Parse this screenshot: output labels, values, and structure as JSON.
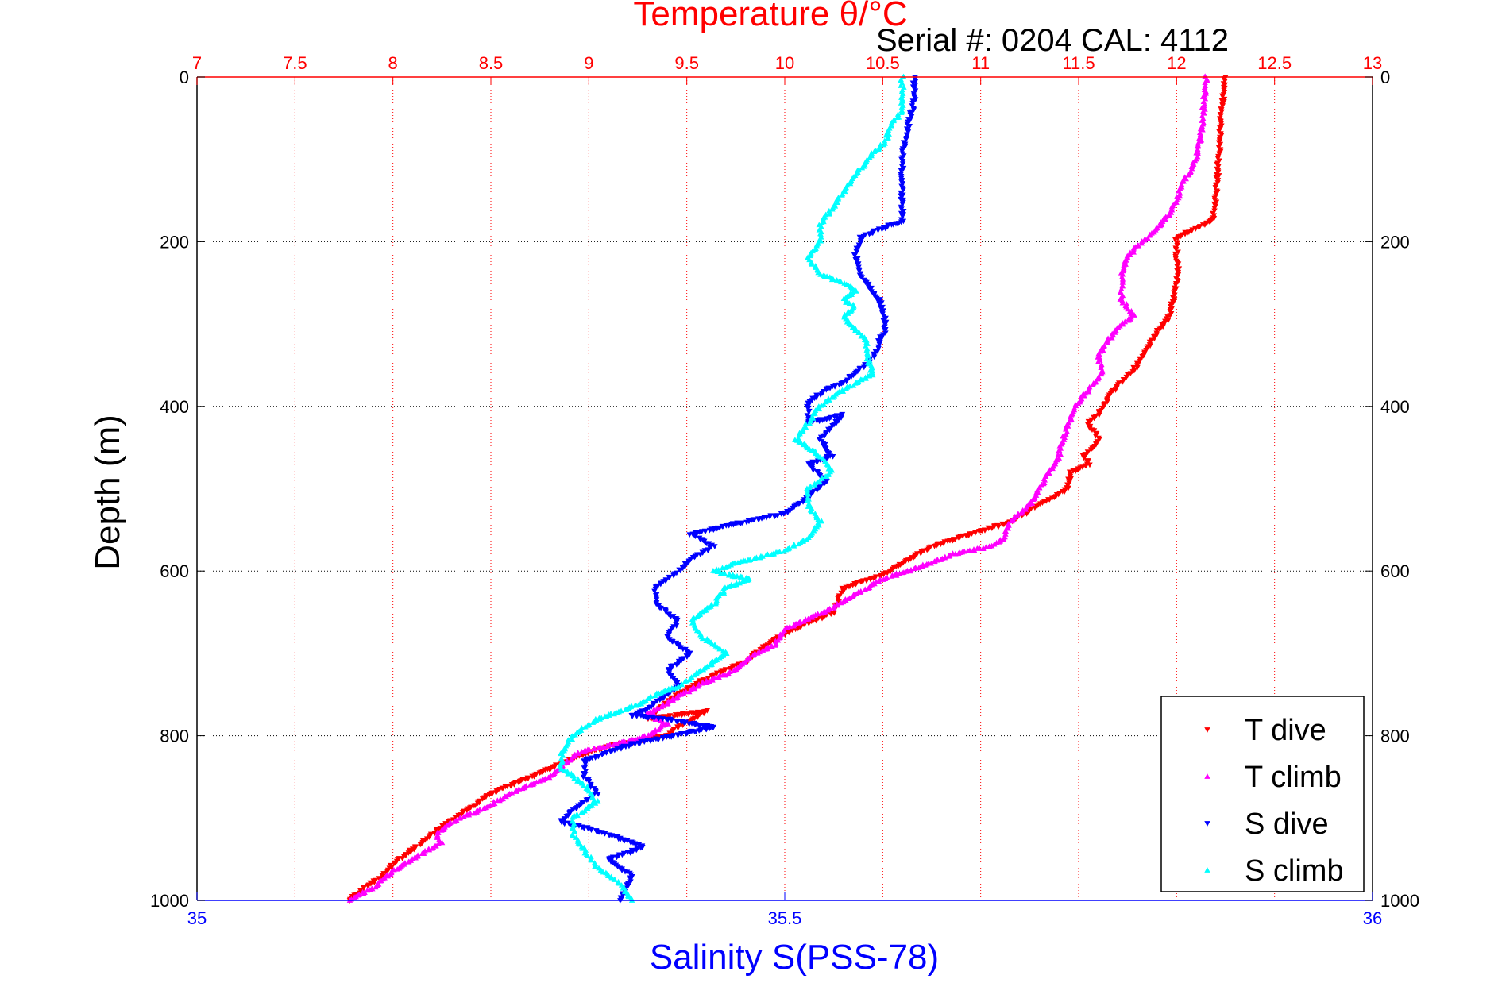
{
  "chart_data": {
    "type": "scatter",
    "title": "Temperature θ/°C",
    "subtitle": "Serial #: 0204  CAL: 4112",
    "ylabel": "Depth (m)",
    "xlabel": "Salinity S(PSS-78)",
    "y_axis": {
      "range": [
        0,
        1000
      ],
      "inverted": true,
      "ticks": [
        "0",
        "200",
        "400",
        "600",
        "800",
        "1000"
      ],
      "tick_values": [
        0,
        200,
        400,
        600,
        800,
        1000
      ]
    },
    "top_axis": {
      "quantity": "temperature",
      "range": [
        7,
        13
      ],
      "ticks": [
        "7",
        "7.5",
        "8",
        "8.5",
        "9",
        "9.5",
        "10",
        "10.5",
        "11",
        "11.5",
        "12",
        "12.5",
        "13"
      ],
      "tick_values": [
        7,
        7.5,
        8,
        8.5,
        9,
        9.5,
        10,
        10.5,
        11,
        11.5,
        12,
        12.5,
        13
      ],
      "color": "#ff0000"
    },
    "bottom_axis": {
      "quantity": "salinity",
      "range": [
        35,
        36
      ],
      "ticks": [
        "35",
        "35.5",
        "36"
      ],
      "tick_values": [
        35,
        35.5,
        36
      ],
      "color": "#0000ff"
    },
    "grid": true,
    "legend_position": "bottom-right",
    "colors": {
      "t_dive": "#ff0000",
      "t_climb": "#ff00ff",
      "s_dive": "#0000ff",
      "s_climb": "#00ffff",
      "title": "#ff0000",
      "xlabel": "#0000ff",
      "grid_temp": "#ff0000",
      "grid_depth": "#000000"
    },
    "series": [
      {
        "name": "T dive",
        "axis": "temperature",
        "color": "#ff0000",
        "marker": "triangle-down",
        "x": [
          12.25,
          12.23,
          12.22,
          12.21,
          12.2,
          12.19,
          12.18,
          12.08,
          12.0,
          12.0,
          12.01,
          11.99,
          11.97,
          11.95,
          11.9,
          11.85,
          11.8,
          11.72,
          11.65,
          11.6,
          11.55,
          11.6,
          11.58,
          11.52,
          11.56,
          11.46,
          11.44,
          11.3,
          11.15,
          10.95,
          10.75,
          10.6,
          10.5,
          10.3,
          10.25,
          10.05,
          9.9,
          9.8,
          9.6,
          9.45,
          9.35,
          9.3,
          9.6,
          9.45,
          9.4,
          9.15,
          9.0,
          8.8,
          8.5,
          8.35,
          8.25,
          8.2,
          8.15,
          8.0,
          7.95,
          7.85,
          7.8,
          7.78
        ],
        "y": [
          0,
          40,
          80,
          120,
          150,
          170,
          175,
          185,
          195,
          220,
          240,
          260,
          285,
          295,
          310,
          330,
          350,
          370,
          390,
          410,
          420,
          440,
          450,
          460,
          470,
          480,
          500,
          520,
          540,
          555,
          570,
          590,
          605,
          620,
          650,
          670,
          690,
          710,
          730,
          750,
          770,
          780,
          770,
          790,
          800,
          810,
          820,
          840,
          870,
          895,
          910,
          920,
          930,
          955,
          970,
          985,
          995,
          1000
        ]
      },
      {
        "name": "T climb",
        "axis": "temperature",
        "color": "#ff00ff",
        "marker": "triangle-up",
        "x": [
          12.15,
          12.14,
          12.13,
          12.11,
          12.08,
          12.03,
          12.0,
          11.95,
          11.9,
          11.85,
          11.8,
          11.75,
          11.72,
          11.72,
          11.72,
          11.75,
          11.78,
          11.7,
          11.65,
          11.6,
          11.62,
          11.55,
          11.48,
          11.45,
          11.42,
          11.4,
          11.35,
          11.3,
          11.25,
          11.15,
          11.12,
          11.05,
          10.95,
          10.85,
          10.75,
          10.5,
          10.2,
          10.0,
          9.95,
          9.85,
          9.75,
          9.55,
          9.4,
          9.3,
          9.4,
          9.3,
          9.15,
          8.95,
          8.8,
          8.6,
          8.45,
          8.3,
          8.22,
          8.25,
          8.1,
          8.0,
          7.9,
          7.78
        ],
        "y": [
          0,
          30,
          60,
          90,
          110,
          130,
          150,
          170,
          185,
          195,
          205,
          220,
          240,
          260,
          270,
          280,
          290,
          305,
          320,
          340,
          360,
          380,
          400,
          420,
          440,
          460,
          480,
          500,
          520,
          540,
          560,
          570,
          575,
          580,
          590,
          610,
          650,
          670,
          690,
          700,
          720,
          740,
          760,
          775,
          785,
          800,
          810,
          820,
          850,
          870,
          890,
          905,
          920,
          930,
          950,
          965,
          985,
          1000
        ]
      },
      {
        "name": "S dive",
        "axis": "salinity",
        "color": "#0000ff",
        "marker": "triangle-down",
        "x": [
          35.61,
          35.61,
          35.605,
          35.6,
          35.6,
          35.6,
          35.6,
          35.58,
          35.565,
          35.56,
          35.565,
          35.58,
          35.585,
          35.585,
          35.58,
          35.58,
          35.575,
          35.56,
          35.55,
          35.535,
          35.52,
          35.52,
          35.55,
          35.53,
          35.54,
          35.52,
          35.535,
          35.52,
          35.5,
          35.45,
          35.42,
          35.44,
          35.42,
          35.41,
          35.39,
          35.39,
          35.41,
          35.4,
          35.42,
          35.4,
          35.41,
          35.39,
          35.38,
          35.37,
          35.4,
          35.44,
          35.37,
          35.33,
          35.33,
          35.34,
          35.32,
          35.31,
          35.34,
          35.36,
          35.38,
          35.35,
          35.37,
          35.36
        ],
        "y": [
          0,
          30,
          60,
          90,
          120,
          150,
          175,
          185,
          195,
          215,
          240,
          270,
          290,
          310,
          320,
          330,
          340,
          360,
          370,
          380,
          395,
          420,
          410,
          440,
          460,
          470,
          490,
          510,
          530,
          545,
          555,
          570,
          585,
          600,
          620,
          640,
          660,
          680,
          700,
          720,
          740,
          760,
          770,
          775,
          780,
          790,
          810,
          830,
          850,
          870,
          890,
          905,
          915,
          925,
          935,
          950,
          970,
          1000
        ]
      },
      {
        "name": "S climb",
        "axis": "salinity",
        "color": "#00ffff",
        "marker": "triangle-up",
        "x": [
          35.6,
          35.6,
          35.6,
          35.59,
          35.585,
          35.57,
          35.56,
          35.55,
          35.54,
          35.53,
          35.53,
          35.52,
          35.53,
          35.55,
          35.56,
          35.55,
          35.56,
          35.55,
          35.555,
          35.57,
          35.57,
          35.575,
          35.55,
          35.53,
          35.52,
          35.51,
          35.53,
          35.54,
          35.52,
          35.52,
          35.53,
          35.52,
          35.5,
          35.46,
          35.44,
          35.47,
          35.45,
          35.44,
          35.42,
          35.43,
          35.45,
          35.43,
          35.41,
          35.39,
          35.38,
          35.36,
          35.34,
          35.32,
          35.31,
          35.31,
          35.33,
          35.34,
          35.32,
          35.32,
          35.33,
          35.34,
          35.36,
          35.37
        ],
        "y": [
          0,
          20,
          40,
          60,
          80,
          100,
          120,
          140,
          160,
          180,
          200,
          220,
          240,
          250,
          260,
          270,
          280,
          290,
          300,
          320,
          340,
          360,
          380,
          400,
          420,
          440,
          460,
          480,
          500,
          520,
          540,
          560,
          575,
          590,
          600,
          610,
          620,
          640,
          660,
          680,
          700,
          720,
          740,
          750,
          760,
          770,
          780,
          800,
          820,
          840,
          860,
          880,
          900,
          920,
          940,
          960,
          980,
          1000
        ]
      }
    ]
  }
}
